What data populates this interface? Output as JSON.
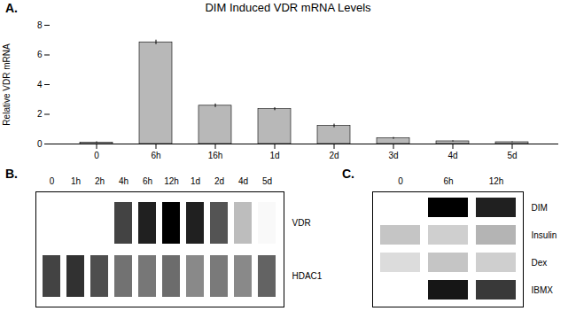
{
  "chart_data": [
    {
      "type": "bar",
      "title": "DIM Induced VDR mRNA Levels",
      "annotations": [
        "A."
      ],
      "categories": [
        "0",
        "6h",
        "16h",
        "1d",
        "2d",
        "3d",
        "4d",
        "5d"
      ],
      "values": [
        0.1,
        6.85,
        2.58,
        2.35,
        1.22,
        0.38,
        0.18,
        0.12
      ],
      "errors": [
        0.05,
        0.15,
        0.12,
        0.1,
        0.12,
        0.06,
        0.04,
        0.03
      ],
      "color": "#b8b8b8",
      "ylabel": "Relative VDR mRNA",
      "ylim": [
        0,
        8
      ],
      "yticks": [
        0,
        2,
        4,
        6,
        8
      ]
    },
    {
      "type": "heatmap",
      "annotations": [
        "B."
      ],
      "categories": [
        "0",
        "1h",
        "2h",
        "4h",
        "6h",
        "12h",
        "1d",
        "2d",
        "4d",
        "5d"
      ],
      "series": [
        {
          "name": "VDR",
          "values": [
            0.0,
            0.0,
            0.0,
            0.75,
            0.85,
            0.95,
            0.85,
            0.7,
            0.35,
            0.05
          ]
        },
        {
          "name": "HDAC1",
          "values": [
            0.75,
            0.8,
            0.72,
            0.6,
            0.58,
            0.62,
            0.52,
            0.57,
            0.52,
            0.65
          ]
        }
      ]
    },
    {
      "type": "heatmap",
      "annotations": [
        "C."
      ],
      "categories": [
        "0",
        "6h",
        "12h"
      ],
      "series": [
        {
          "name": "DIM",
          "values": [
            0.0,
            0.95,
            0.85
          ]
        },
        {
          "name": "Insulin",
          "values": [
            0.32,
            0.28,
            0.38
          ]
        },
        {
          "name": "Dex",
          "values": [
            0.22,
            0.32,
            0.28
          ]
        },
        {
          "name": "IBMX",
          "values": [
            0.0,
            0.88,
            0.78
          ]
        }
      ]
    }
  ]
}
